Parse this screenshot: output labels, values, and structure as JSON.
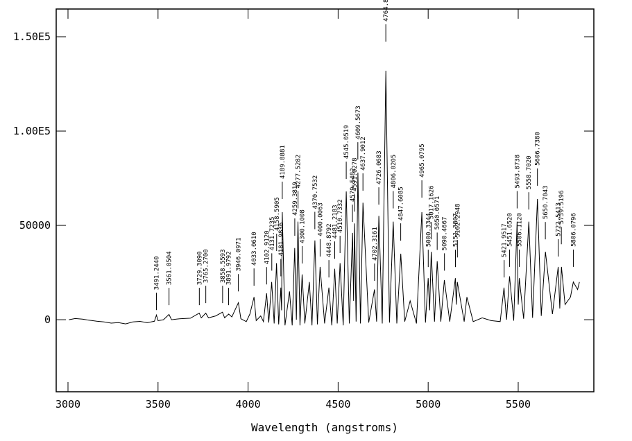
{
  "chart_data": {
    "type": "line",
    "xlabel": "Wavelength (angstroms)",
    "xlim": [
      2934.5,
      5920
    ],
    "ylim": [
      -38200,
      164700
    ],
    "xticks": [
      3000,
      3500,
      4000,
      4500,
      5000,
      5500
    ],
    "yticks": [
      0,
      50000,
      {
        "value": 100000,
        "label": "1.00E5"
      },
      {
        "value": 150000,
        "label": "1.50E5"
      }
    ],
    "color": "#000000",
    "x": [
      3005,
      3040,
      3080,
      3120,
      3160,
      3200,
      3240,
      3280,
      3320,
      3360,
      3400,
      3440,
      3480,
      3491,
      3500,
      3530,
      3561,
      3575,
      3620,
      3680,
      3729,
      3740,
      3765,
      3780,
      3820,
      3858,
      3870,
      3892,
      3910,
      3946,
      3960,
      3990,
      4010,
      4033,
      4045,
      4070,
      4085,
      4103,
      4115,
      4131,
      4145,
      4158,
      4170,
      4182,
      4186,
      4190,
      4205,
      4230,
      4245,
      4259,
      4268,
      4277,
      4288,
      4300,
      4315,
      4340,
      4355,
      4371,
      4385,
      4400,
      4425,
      4449,
      4465,
      4481,
      4495,
      4511,
      4528,
      4545,
      4562,
      4580,
      4586,
      4591,
      4600,
      4610,
      4624,
      4638,
      4670,
      4702,
      4714,
      4726,
      4745,
      4765,
      4785,
      4806,
      4826,
      4848,
      4870,
      4900,
      4935,
      4965,
      4985,
      5000,
      5008,
      5017,
      5035,
      5050,
      5070,
      5090,
      5120,
      5151,
      5156,
      5162,
      5200,
      5215,
      5250,
      5300,
      5350,
      5400,
      5421,
      5435,
      5452,
      5475,
      5494,
      5500,
      5506,
      5530,
      5559,
      5580,
      5607,
      5628,
      5651,
      5690,
      5722,
      5731,
      5740,
      5760,
      5790,
      5806,
      5830,
      5840
    ],
    "values": [
      0,
      600,
      300,
      -300,
      -800,
      -1200,
      -1800,
      -1500,
      -2200,
      -1200,
      -900,
      -1600,
      -800,
      2500,
      -500,
      0,
      2800,
      0,
      500,
      800,
      3500,
      1000,
      3500,
      1000,
      2000,
      4000,
      1000,
      3000,
      1500,
      9000,
      500,
      -1000,
      3000,
      12000,
      -500,
      2000,
      -1000,
      14000,
      -1500,
      20000,
      -2000,
      30000,
      -2500,
      17000,
      5000,
      57000,
      -3000,
      15000,
      -3000,
      38000,
      0,
      52000,
      -3000,
      24000,
      -2000,
      20000,
      -3000,
      42000,
      -2500,
      28000,
      -2000,
      17000,
      -3000,
      27000,
      -2000,
      30000,
      -3000,
      68000,
      -2000,
      46000,
      10000,
      51000,
      -1000,
      78000,
      -2000,
      62000,
      -1500,
      16000,
      -1000,
      55000,
      -2000,
      132000,
      -1500,
      52000,
      -2000,
      35000,
      -1000,
      10000,
      -2000,
      57000,
      -1500,
      22000,
      5000,
      36000,
      -1000,
      31000,
      -1000,
      21000,
      -1000,
      22000,
      8000,
      20000,
      -1000,
      12000,
      -1000,
      1000,
      -500,
      -1000,
      17000,
      0,
      23000,
      -500,
      52000,
      8000,
      22000,
      500,
      52000,
      1000,
      64000,
      2000,
      36000,
      3000,
      28000,
      6000,
      28000,
      8000,
      12000,
      20000,
      16000,
      20000
    ],
    "annotations": [
      {
        "label": "3491.2440",
        "x": 3491.244,
        "y": 5100
      },
      {
        "label": "3561.0504",
        "x": 3561.0504,
        "y": 7700
      },
      {
        "label": "3729.3090",
        "x": 3729.309,
        "y": 7700
      },
      {
        "label": "3765.2700",
        "x": 3765.27,
        "y": 8800
      },
      {
        "label": "3858.5593",
        "x": 3858.5593,
        "y": 8800
      },
      {
        "label": "3891.9792",
        "x": 3891.9792,
        "y": 7700
      },
      {
        "label": "3946.0971",
        "x": 3946.0971,
        "y": 15000
      },
      {
        "label": "4033.0610",
        "x": 4033.061,
        "y": 18000
      },
      {
        "label": "4102.9120",
        "x": 4102.912,
        "y": 18700
      },
      {
        "label": "4131.7235",
        "x": 4131.7235,
        "y": 26000
      },
      {
        "label": "4158.5905",
        "x": 4158.5905,
        "y": 36400
      },
      {
        "label": "4181.9836",
        "x": 4181.9836,
        "y": 23000
      },
      {
        "label": "4189.8881",
        "x": 4189.8881,
        "y": 64000
      },
      {
        "label": "4259.3819",
        "x": 4259.3819,
        "y": 44500
      },
      {
        "label": "4277.5282",
        "x": 4277.5282,
        "y": 59000
      },
      {
        "label": "4300.1008",
        "x": 4300.1008,
        "y": 29800
      },
      {
        "label": "4370.7532",
        "x": 4370.7532,
        "y": 48000
      },
      {
        "label": "4400.0063",
        "x": 4400.0063,
        "y": 33500
      },
      {
        "label": "4448.8792",
        "x": 4448.8792,
        "y": 22400
      },
      {
        "label": "4481.2183",
        "x": 4481.2183,
        "y": 32300
      },
      {
        "label": "4510.7332",
        "x": 4510.7332,
        "y": 35300
      },
      {
        "label": "4545.0519",
        "x": 4545.0519,
        "y": 74600
      },
      {
        "label": "4579.5482",
        "x": 4579.5482,
        "y": 51800
      },
      {
        "label": "4591.0278",
        "x": 4591.0278,
        "y": 57300
      },
      {
        "label": "4609.5673",
        "x": 4609.5673,
        "y": 84900
      },
      {
        "label": "4637.9012",
        "x": 4637.9012,
        "y": 68400
      },
      {
        "label": "4702.3161",
        "x": 4702.3161,
        "y": 20600
      },
      {
        "label": "4726.0683",
        "x": 4726.0683,
        "y": 61000
      },
      {
        "label": "4764.8646",
        "x": 4764.8646,
        "y": 147400
      },
      {
        "label": "4806.0205",
        "x": 4806.0205,
        "y": 59000
      },
      {
        "label": "4847.6085",
        "x": 4847.6085,
        "y": 41900
      },
      {
        "label": "4965.0795",
        "x": 4965.0795,
        "y": 64700
      },
      {
        "label": "5000.3344",
        "x": 5000.3344,
        "y": 27900
      },
      {
        "label": "5017.1626",
        "x": 5017.1626,
        "y": 42600
      },
      {
        "label": "5050.0571",
        "x": 5050.0571,
        "y": 37000
      },
      {
        "label": "5090.4667",
        "x": 5090.4667,
        "y": 26000
      },
      {
        "label": "5151.3807",
        "x": 5151.3807,
        "y": 27900
      },
      {
        "label": "5162.2948",
        "x": 5162.2948,
        "y": 33000
      },
      {
        "label": "5421.9517",
        "x": 5421.9517,
        "y": 22400
      },
      {
        "label": "5451.6520",
        "x": 5451.652,
        "y": 28000
      },
      {
        "label": "5493.8738",
        "x": 5493.8738,
        "y": 59000
      },
      {
        "label": "5506.1120",
        "x": 5506.112,
        "y": 28000
      },
      {
        "label": "5558.7020",
        "x": 5558.702,
        "y": 58400
      },
      {
        "label": "5606.7380",
        "x": 5606.738,
        "y": 71000
      },
      {
        "label": "5650.7043",
        "x": 5650.7043,
        "y": 42600
      },
      {
        "label": "5722.5413",
        "x": 5722.5413,
        "y": 33500
      },
      {
        "label": "5739.5196",
        "x": 5739.5196,
        "y": 40000
      },
      {
        "label": "5806.0796",
        "x": 5806.0796,
        "y": 28000
      }
    ]
  }
}
